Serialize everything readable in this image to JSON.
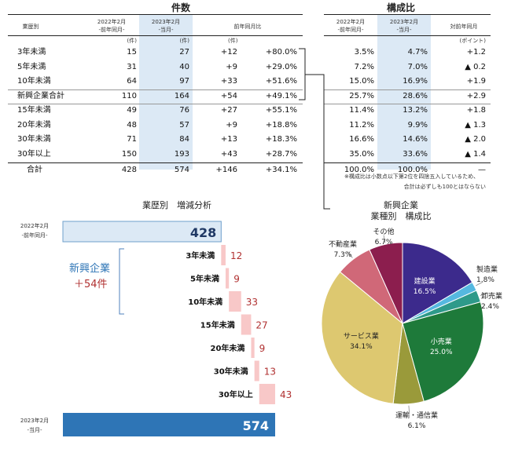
{
  "table": {
    "counts_title": "件数",
    "ratio_title": "構成比",
    "headers": {
      "category": "業歴別",
      "prev": [
        "2022年2月",
        "-前年同月-"
      ],
      "curr": [
        "2023年2月",
        "-当月-"
      ],
      "yoy": "前年同月比",
      "ratio_prev": [
        "2022年2月",
        "-前年同月-"
      ],
      "ratio_curr": [
        "2023年2月",
        "-当月-"
      ],
      "ratio_yoy": "対前年同月"
    },
    "units": {
      "prev": "(件)",
      "curr": "(件)",
      "yoy": "(件)",
      "point": "(ポイント)"
    },
    "rows": [
      {
        "label": "3年未満",
        "prev": "15",
        "curr": "27",
        "diff": "+12",
        "pct": "+80.0%",
        "rp": "3.5%",
        "rc": "4.7%",
        "ry": "+1.2"
      },
      {
        "label": "5年未満",
        "prev": "31",
        "curr": "40",
        "diff": "+9",
        "pct": "+29.0%",
        "rp": "7.2%",
        "rc": "7.0%",
        "ry": "▲ 0.2"
      },
      {
        "label": "10年未満",
        "prev": "64",
        "curr": "97",
        "diff": "+33",
        "pct": "+51.6%",
        "rp": "15.0%",
        "rc": "16.9%",
        "ry": "+1.9"
      },
      {
        "label": "新興企業合計",
        "prev": "110",
        "curr": "164",
        "diff": "+54",
        "pct": "+49.1%",
        "rp": "25.7%",
        "rc": "28.6%",
        "ry": "+2.9"
      },
      {
        "label": "15年未満",
        "prev": "49",
        "curr": "76",
        "diff": "+27",
        "pct": "+55.1%",
        "rp": "11.4%",
        "rc": "13.2%",
        "ry": "+1.8"
      },
      {
        "label": "20年未満",
        "prev": "48",
        "curr": "57",
        "diff": "+9",
        "pct": "+18.8%",
        "rp": "11.2%",
        "rc": "9.9%",
        "ry": "▲ 1.3"
      },
      {
        "label": "30年未満",
        "prev": "71",
        "curr": "84",
        "diff": "+13",
        "pct": "+18.3%",
        "rp": "16.6%",
        "rc": "14.6%",
        "ry": "▲ 2.0"
      },
      {
        "label": "30年以上",
        "prev": "150",
        "curr": "193",
        "diff": "+43",
        "pct": "+28.7%",
        "rp": "35.0%",
        "rc": "33.6%",
        "ry": "▲ 1.4"
      }
    ],
    "total": {
      "label": "合計",
      "prev": "428",
      "curr": "574",
      "diff": "+146",
      "pct": "+34.1%",
      "rp": "100.0%",
      "rc": "100.0%",
      "ry": "—"
    },
    "notes": [
      "※構成比は小数点以下第2位を四捨五入しているため、",
      "合計は必ずしも100とはならない"
    ]
  },
  "chart_data": [
    {
      "type": "bar",
      "title": "業歴別　増減分析",
      "start": {
        "label": [
          "2022年2月",
          "-前年同月-"
        ],
        "value": 428
      },
      "end": {
        "label": [
          "2023年2月",
          "-当月-"
        ],
        "value": 574
      },
      "categories": [
        "3年未満",
        "5年未満",
        "10年未満",
        "15年未満",
        "20年未満",
        "30年未満",
        "30年以上"
      ],
      "values": [
        12,
        9,
        33,
        27,
        9,
        13,
        43
      ],
      "group_annotation": {
        "label": "新興企業",
        "value": "＋54件"
      },
      "colors": {
        "start": "#dce9f5",
        "end": "#2e75b6",
        "increase": "#f8c8c8",
        "value_text": "#b03030"
      }
    },
    {
      "type": "pie",
      "title": [
        "新興企業",
        "業種別　構成比"
      ],
      "slices": [
        {
          "label": "建設業",
          "value": 16.5,
          "display": "16.5%",
          "color": "#3c2a8c",
          "inside": true
        },
        {
          "label": "製造業",
          "value": 1.8,
          "display": "1.8%",
          "color": "#55b8e0",
          "inside": false
        },
        {
          "label": "卸売業",
          "value": 2.4,
          "display": "2.4%",
          "color": "#2e9a8a",
          "inside": false
        },
        {
          "label": "小売業",
          "value": 25.0,
          "display": "25.0%",
          "color": "#1e7a3a",
          "inside": true
        },
        {
          "label": "運輸・通信業",
          "value": 6.1,
          "display": "6.1%",
          "color": "#9a9a3a",
          "inside": false
        },
        {
          "label": "サービス業",
          "value": 34.1,
          "display": "34.1%",
          "color": "#ddc870",
          "inside": true
        },
        {
          "label": "不動産業",
          "value": 7.3,
          "display": "7.3%",
          "color": "#d06878",
          "inside": false
        },
        {
          "label": "その他",
          "value": 6.7,
          "display": "6.7%",
          "color": "#8c1e4e",
          "inside": false
        }
      ]
    }
  ]
}
